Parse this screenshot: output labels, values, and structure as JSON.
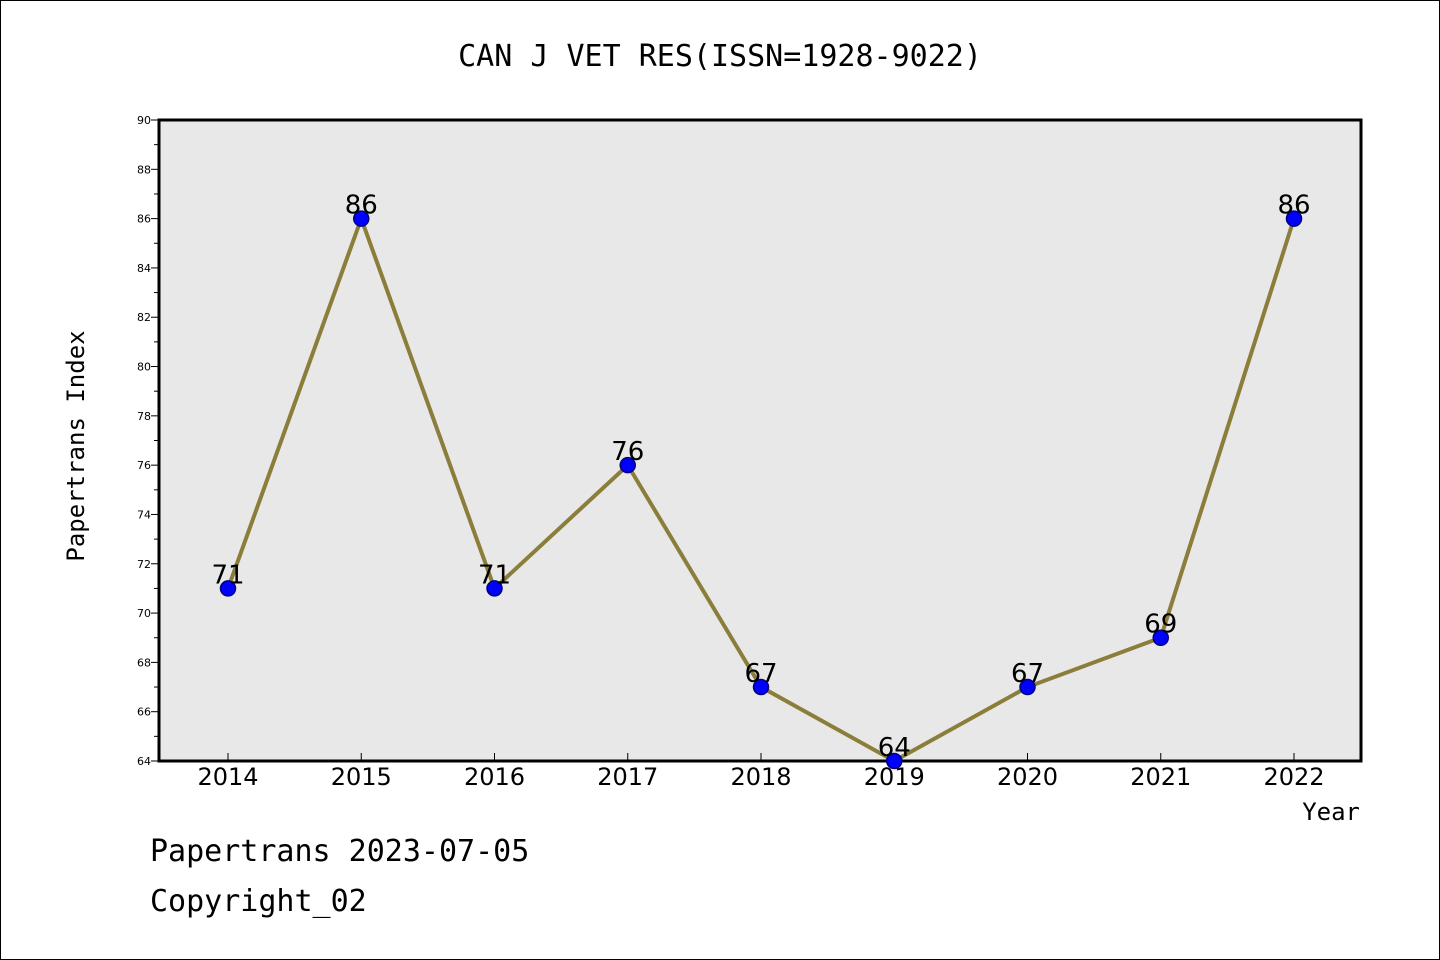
{
  "footer": {
    "date_line": "Papertrans 2023-07-05",
    "copyright_line": "Copyright_02"
  },
  "chart_data": {
    "type": "line",
    "title": "CAN J VET RES(ISSN=1928-9022)",
    "xlabel": "Year",
    "ylabel": "Papertrans Index",
    "categories": [
      "2014",
      "2015",
      "2016",
      "2017",
      "2018",
      "2019",
      "2020",
      "2021",
      "2022"
    ],
    "series": [
      {
        "values": [
          71,
          86,
          71,
          76,
          67,
          64,
          67,
          69,
          86
        ]
      }
    ],
    "ylim": [
      64,
      90
    ],
    "yticks": [
      64,
      66,
      68,
      70,
      72,
      74,
      76,
      78,
      80,
      82,
      84,
      86,
      88,
      90
    ],
    "grid": false,
    "data_labels": true,
    "colors": {
      "plot_background": "#e8e8e8",
      "line": "#8b7d3a",
      "marker": "#0000ff",
      "marker_edge": "#000080"
    }
  }
}
